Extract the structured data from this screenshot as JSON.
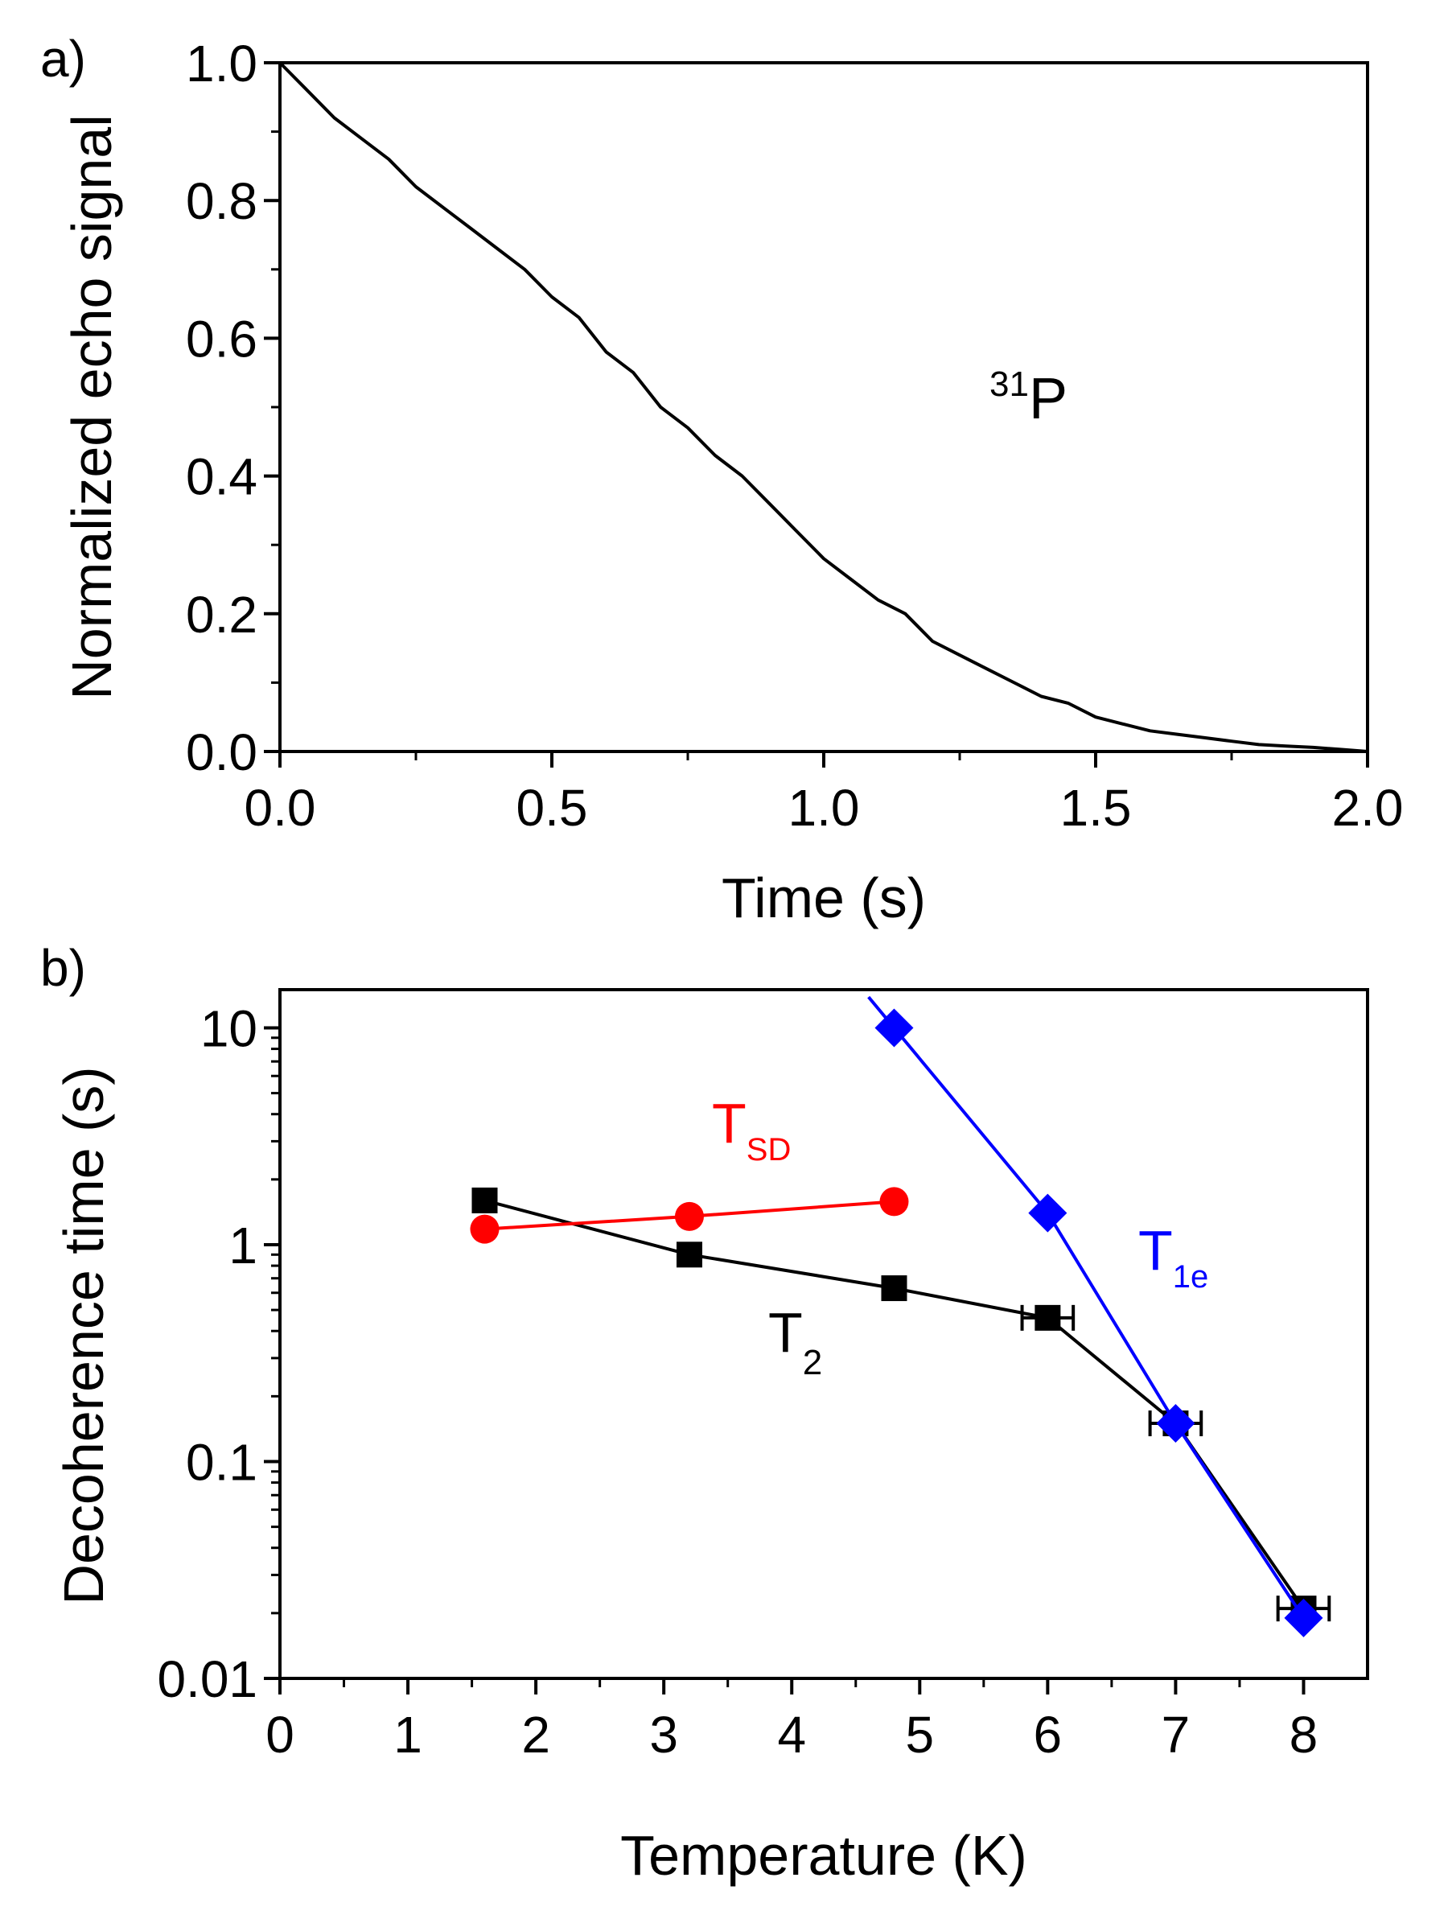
{
  "chart_data": [
    {
      "panel_label": "a)",
      "type": "line",
      "xlabel": "Time (s)",
      "ylabel": "Normalized echo signal",
      "xlim": [
        0,
        2.0
      ],
      "ylim": [
        0,
        1.0
      ],
      "x_ticks": [
        "0.0",
        "0.5",
        "1.0",
        "1.5",
        "2.0"
      ],
      "y_ticks": [
        "0.0",
        "0.2",
        "0.4",
        "0.6",
        "0.8",
        "1.0"
      ],
      "annotation": {
        "sup": "31",
        "main": "P"
      },
      "series": [
        {
          "color": "#000000",
          "x": [
            0.0,
            0.05,
            0.1,
            0.15,
            0.2,
            0.25,
            0.3,
            0.35,
            0.4,
            0.45,
            0.5,
            0.55,
            0.6,
            0.65,
            0.7,
            0.75,
            0.8,
            0.85,
            0.9,
            0.95,
            1.0,
            1.05,
            1.1,
            1.15,
            1.2,
            1.25,
            1.3,
            1.35,
            1.4,
            1.45,
            1.5,
            1.55,
            1.6,
            1.65,
            1.7,
            1.75,
            1.8,
            1.85,
            1.9,
            1.95,
            2.0
          ],
          "y": [
            1.0,
            0.96,
            0.92,
            0.89,
            0.86,
            0.82,
            0.79,
            0.76,
            0.73,
            0.7,
            0.66,
            0.63,
            0.58,
            0.55,
            0.5,
            0.47,
            0.43,
            0.4,
            0.36,
            0.32,
            0.28,
            0.25,
            0.22,
            0.2,
            0.16,
            0.14,
            0.12,
            0.1,
            0.08,
            0.07,
            0.05,
            0.04,
            0.03,
            0.025,
            0.02,
            0.015,
            0.01,
            0.008,
            0.006,
            0.003,
            0.0
          ]
        }
      ]
    },
    {
      "panel_label": "b)",
      "type": "scatter",
      "xlabel": "Temperature (K)",
      "ylabel": "Decoherence time (s)",
      "xlim": [
        0,
        8.5
      ],
      "ylim": [
        0.01,
        15
      ],
      "yscale": "log",
      "x_ticks": [
        "0",
        "1",
        "2",
        "3",
        "4",
        "5",
        "6",
        "7",
        "8"
      ],
      "y_ticks": [
        "0.01",
        "0.1",
        "1",
        "10"
      ],
      "series": [
        {
          "label_main": "T",
          "label_sub": "2",
          "color": "#000000",
          "marker": "square",
          "x": [
            1.6,
            3.2,
            4.8,
            6.0,
            7.0,
            8.0
          ],
          "y": [
            1.6,
            0.9,
            0.63,
            0.46,
            0.15,
            0.021
          ],
          "xerr": [
            0,
            0,
            0,
            0.2,
            0.2,
            0.2
          ]
        },
        {
          "label_main": "T",
          "label_sub": "SD",
          "color": "#ff0000",
          "marker": "circle",
          "x": [
            1.6,
            3.2,
            4.8
          ],
          "y": [
            1.18,
            1.35,
            1.58
          ]
        },
        {
          "label_main": "T",
          "label_sub": "1e",
          "color": "#0000ff",
          "marker": "diamond",
          "x": [
            4.8,
            6.0,
            7.0,
            8.0
          ],
          "y": [
            10,
            1.4,
            0.15,
            0.019
          ],
          "extrapolate_start_x": 4.6
        }
      ]
    }
  ]
}
